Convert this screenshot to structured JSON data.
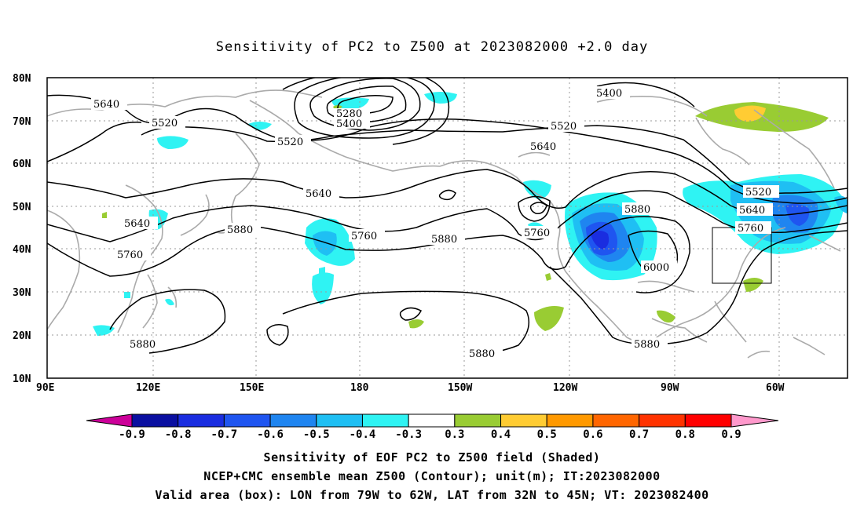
{
  "title": "Sensitivity of PC2 to Z500 at 2023082000 +2.0 day",
  "lat_labels": [
    "80N",
    "70N",
    "60N",
    "50N",
    "40N",
    "30N",
    "20N",
    "10N"
  ],
  "lon_labels": [
    "90E",
    "120E",
    "150E",
    "180",
    "150W",
    "120W",
    "90W",
    "60W"
  ],
  "contour_labels": [
    {
      "text": "5640",
      "id": "c5640a"
    },
    {
      "text": "5520",
      "id": "c5520a"
    },
    {
      "text": "5520",
      "id": "c5520b"
    },
    {
      "text": "5280",
      "id": "c5280"
    },
    {
      "text": "5400",
      "id": "c5400a"
    },
    {
      "text": "5400",
      "id": "c5400b"
    },
    {
      "text": "5520",
      "id": "c5520c"
    },
    {
      "text": "5640",
      "id": "c5640b"
    },
    {
      "text": "5640",
      "id": "c5640c"
    },
    {
      "text": "5640",
      "id": "c5640d"
    },
    {
      "text": "5760",
      "id": "c5760a"
    },
    {
      "text": "5880",
      "id": "c5880a"
    },
    {
      "text": "5760",
      "id": "c5760b"
    },
    {
      "text": "5880",
      "id": "c5880b"
    },
    {
      "text": "5760",
      "id": "c5760c"
    },
    {
      "text": "5880",
      "id": "c5880c"
    },
    {
      "text": "6000",
      "id": "c6000"
    },
    {
      "text": "5880",
      "id": "c5880d"
    },
    {
      "text": "5880",
      "id": "c5880e"
    },
    {
      "text": "5880",
      "id": "c5880f"
    },
    {
      "text": "5520",
      "id": "c5520d"
    },
    {
      "text": "5640",
      "id": "c5640e"
    },
    {
      "text": "5760",
      "id": "c5760d"
    }
  ],
  "colorbar": {
    "labels": [
      "-0.9",
      "-0.8",
      "-0.7",
      "-0.6",
      "-0.5",
      "-0.4",
      "-0.3",
      "0.3",
      "0.4",
      "0.5",
      "0.6",
      "0.7",
      "0.8",
      "0.9"
    ],
    "colors": [
      "#0a0fa0",
      "#1a2de0",
      "#1f55f0",
      "#1f85f0",
      "#1fbff3",
      "#2ff3f3",
      "#ffffff",
      "#99cc33",
      "#ffcc33",
      "#ff9900",
      "#ff6600",
      "#ff3300",
      "#ff0000"
    ],
    "left_arrow_color": "#cc0099",
    "right_arrow_color": "#ff99cc"
  },
  "captions": [
    "Sensitivity of EOF PC2 to Z500 field (Shaded)",
    "NCEP+CMC ensemble mean Z500 (Contour); unit(m); IT:2023082000",
    "Valid area (box): LON from 79W to 62W, LAT from 32N to 45N; VT: 2023082400"
  ]
}
